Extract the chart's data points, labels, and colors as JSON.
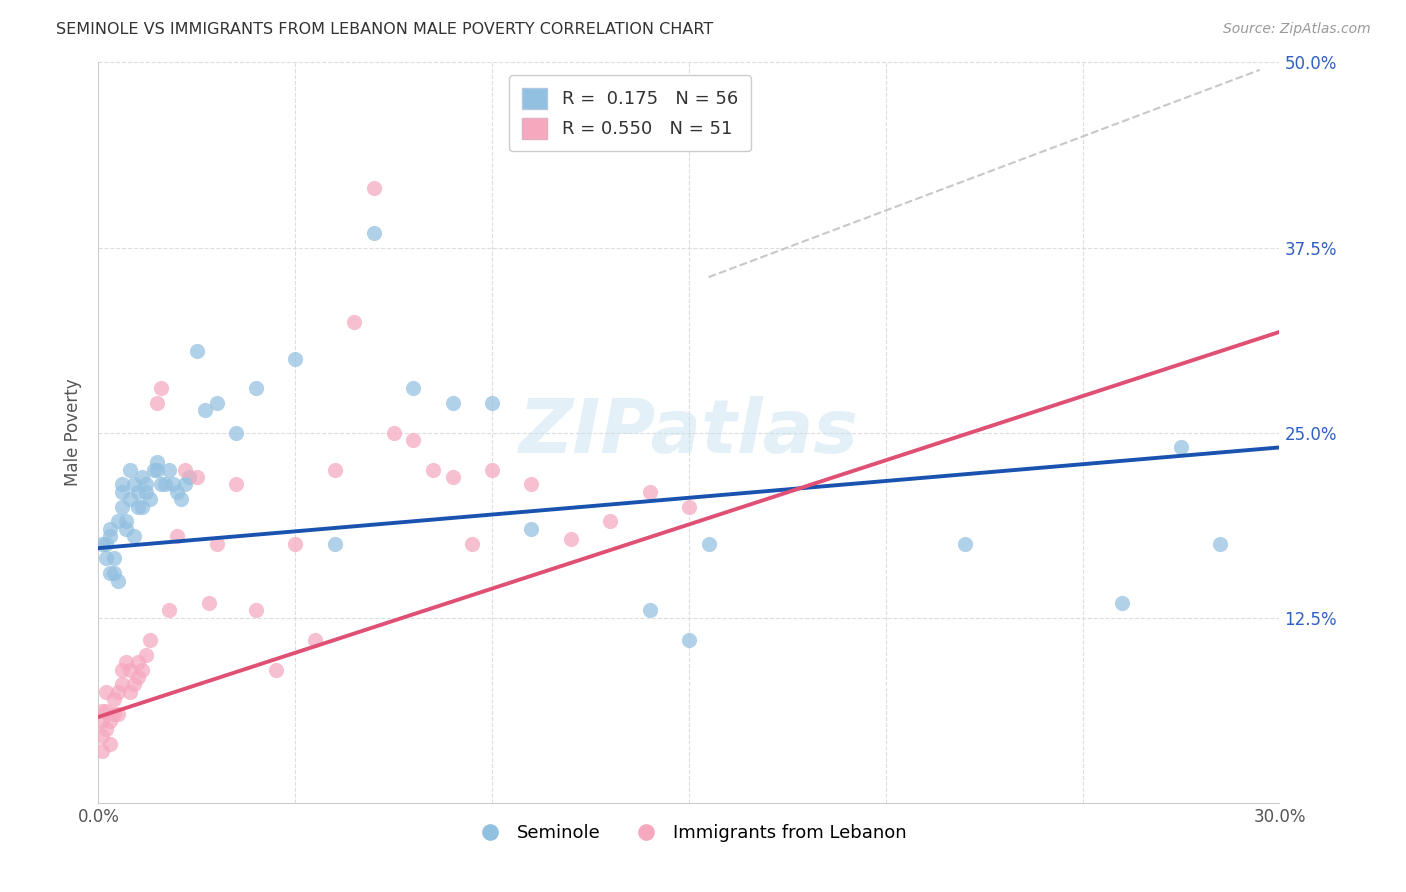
{
  "title": "SEMINOLE VS IMMIGRANTS FROM LEBANON MALE POVERTY CORRELATION CHART",
  "source": "Source: ZipAtlas.com",
  "ylabel": "Male Poverty",
  "xlim": [
    0.0,
    0.3
  ],
  "ylim": [
    0.0,
    0.5
  ],
  "xtick_positions": [
    0.0,
    0.05,
    0.1,
    0.15,
    0.2,
    0.25,
    0.3
  ],
  "xticklabels": [
    "0.0%",
    "",
    "",
    "",
    "",
    "",
    "30.0%"
  ],
  "ytick_positions": [
    0.0,
    0.125,
    0.25,
    0.375,
    0.5
  ],
  "yticklabels_right": [
    "",
    "12.5%",
    "25.0%",
    "37.5%",
    "50.0%"
  ],
  "legend_r1": "R =  0.175",
  "legend_n1": "N = 56",
  "legend_r2": "R = 0.550",
  "legend_n2": "N = 51",
  "legend_bottom1": "Seminole",
  "legend_bottom2": "Immigrants from Lebanon",
  "blue_color": "#92c0e0",
  "pink_color": "#f5a8be",
  "blue_line_color": "#1a52b0",
  "pink_line_color": "#e05075",
  "dashed_color": "#c8c8c8",
  "watermark": "ZIPatlas",
  "blue_line": [
    0.0,
    0.172,
    0.3,
    0.24
  ],
  "pink_line": [
    0.0,
    0.058,
    0.3,
    0.318
  ],
  "dash_line": [
    0.155,
    0.355,
    0.295,
    0.495
  ],
  "blue_x": [
    0.001,
    0.002,
    0.002,
    0.003,
    0.003,
    0.003,
    0.004,
    0.004,
    0.005,
    0.005,
    0.006,
    0.006,
    0.006,
    0.007,
    0.007,
    0.008,
    0.008,
    0.009,
    0.009,
    0.01,
    0.01,
    0.011,
    0.011,
    0.012,
    0.012,
    0.013,
    0.014,
    0.015,
    0.015,
    0.016,
    0.017,
    0.018,
    0.019,
    0.02,
    0.021,
    0.022,
    0.023,
    0.025,
    0.027,
    0.03,
    0.035,
    0.04,
    0.05,
    0.06,
    0.07,
    0.08,
    0.09,
    0.1,
    0.11,
    0.14,
    0.15,
    0.155,
    0.22,
    0.26,
    0.275,
    0.285
  ],
  "blue_y": [
    0.175,
    0.165,
    0.175,
    0.185,
    0.18,
    0.155,
    0.155,
    0.165,
    0.15,
    0.19,
    0.2,
    0.215,
    0.21,
    0.19,
    0.185,
    0.225,
    0.205,
    0.18,
    0.215,
    0.21,
    0.2,
    0.22,
    0.2,
    0.215,
    0.21,
    0.205,
    0.225,
    0.225,
    0.23,
    0.215,
    0.215,
    0.225,
    0.215,
    0.21,
    0.205,
    0.215,
    0.22,
    0.305,
    0.265,
    0.27,
    0.25,
    0.28,
    0.3,
    0.175,
    0.385,
    0.28,
    0.27,
    0.27,
    0.185,
    0.13,
    0.11,
    0.175,
    0.175,
    0.135,
    0.24,
    0.175
  ],
  "pink_x": [
    0.001,
    0.001,
    0.001,
    0.001,
    0.002,
    0.002,
    0.002,
    0.003,
    0.003,
    0.004,
    0.004,
    0.005,
    0.005,
    0.006,
    0.006,
    0.007,
    0.008,
    0.008,
    0.009,
    0.01,
    0.01,
    0.011,
    0.012,
    0.013,
    0.015,
    0.016,
    0.018,
    0.02,
    0.022,
    0.025,
    0.028,
    0.03,
    0.035,
    0.04,
    0.045,
    0.05,
    0.055,
    0.06,
    0.065,
    0.07,
    0.075,
    0.08,
    0.085,
    0.09,
    0.095,
    0.1,
    0.11,
    0.12,
    0.13,
    0.14,
    0.15
  ],
  "pink_y": [
    0.055,
    0.062,
    0.045,
    0.035,
    0.05,
    0.062,
    0.075,
    0.04,
    0.055,
    0.06,
    0.07,
    0.06,
    0.075,
    0.08,
    0.09,
    0.095,
    0.075,
    0.09,
    0.08,
    0.095,
    0.085,
    0.09,
    0.1,
    0.11,
    0.27,
    0.28,
    0.13,
    0.18,
    0.225,
    0.22,
    0.135,
    0.175,
    0.215,
    0.13,
    0.09,
    0.175,
    0.11,
    0.225,
    0.325,
    0.415,
    0.25,
    0.245,
    0.225,
    0.22,
    0.175,
    0.225,
    0.215,
    0.178,
    0.19,
    0.21,
    0.2
  ]
}
